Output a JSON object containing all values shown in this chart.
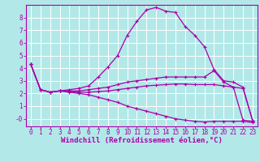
{
  "background_color": "#b3e8e8",
  "grid_color": "#ffffff",
  "line_color": "#aa00aa",
  "spine_color": "#aa00aa",
  "xlabel": "Windchill (Refroidissement éolien,°C)",
  "xlabel_fontsize": 6.5,
  "tick_fontsize": 5.5,
  "xlim": [
    -0.5,
    23.5
  ],
  "ylim": [
    -0.6,
    9.0
  ],
  "yticks": [
    0,
    1,
    2,
    3,
    4,
    5,
    6,
    7,
    8
  ],
  "ytick_labels": [
    "-0",
    "1",
    "2",
    "3",
    "4",
    "5",
    "6",
    "7",
    "8"
  ],
  "xticks": [
    0,
    1,
    2,
    3,
    4,
    5,
    6,
    7,
    8,
    9,
    10,
    11,
    12,
    13,
    14,
    15,
    16,
    17,
    18,
    19,
    20,
    21,
    22,
    23
  ],
  "series": [
    {
      "x": [
        0,
        1,
        2,
        3,
        4,
        5,
        6,
        7,
        8,
        9,
        10,
        11,
        12,
        13,
        14,
        15,
        16,
        17,
        18,
        19,
        20,
        21,
        22,
        23
      ],
      "y": [
        4.3,
        2.3,
        2.1,
        2.2,
        2.3,
        2.4,
        2.6,
        3.3,
        4.1,
        5.0,
        6.6,
        7.7,
        8.6,
        8.8,
        8.5,
        8.4,
        7.3,
        6.6,
        5.7,
        3.9,
        3.0,
        2.9,
        2.5,
        -0.15
      ]
    },
    {
      "x": [
        0,
        1,
        2,
        3,
        4,
        5,
        6,
        7,
        8,
        9,
        10,
        11,
        12,
        13,
        14,
        15,
        16,
        17,
        18,
        19,
        20,
        21,
        22,
        23
      ],
      "y": [
        4.3,
        2.3,
        2.1,
        2.2,
        2.2,
        2.2,
        2.3,
        2.4,
        2.5,
        2.7,
        2.9,
        3.0,
        3.1,
        3.2,
        3.3,
        3.3,
        3.3,
        3.3,
        3.3,
        3.8,
        2.9,
        2.5,
        2.4,
        -0.15
      ]
    },
    {
      "x": [
        0,
        1,
        2,
        3,
        4,
        5,
        6,
        7,
        8,
        9,
        10,
        11,
        12,
        13,
        14,
        15,
        16,
        17,
        18,
        19,
        20,
        21,
        22,
        23
      ],
      "y": [
        4.3,
        2.3,
        2.1,
        2.2,
        2.1,
        2.0,
        1.9,
        1.7,
        1.5,
        1.3,
        1.0,
        0.8,
        0.6,
        0.4,
        0.2,
        0.0,
        -0.1,
        -0.2,
        -0.25,
        -0.2,
        -0.2,
        -0.2,
        -0.2,
        -0.3
      ]
    },
    {
      "x": [
        0,
        1,
        2,
        3,
        4,
        5,
        6,
        7,
        8,
        9,
        10,
        11,
        12,
        13,
        14,
        15,
        16,
        17,
        18,
        19,
        20,
        21,
        22,
        23
      ],
      "y": [
        4.3,
        2.3,
        2.1,
        2.2,
        2.15,
        2.1,
        2.1,
        2.15,
        2.2,
        2.3,
        2.4,
        2.5,
        2.6,
        2.65,
        2.7,
        2.75,
        2.75,
        2.7,
        2.7,
        2.7,
        2.6,
        2.5,
        -0.1,
        -0.2
      ]
    }
  ]
}
